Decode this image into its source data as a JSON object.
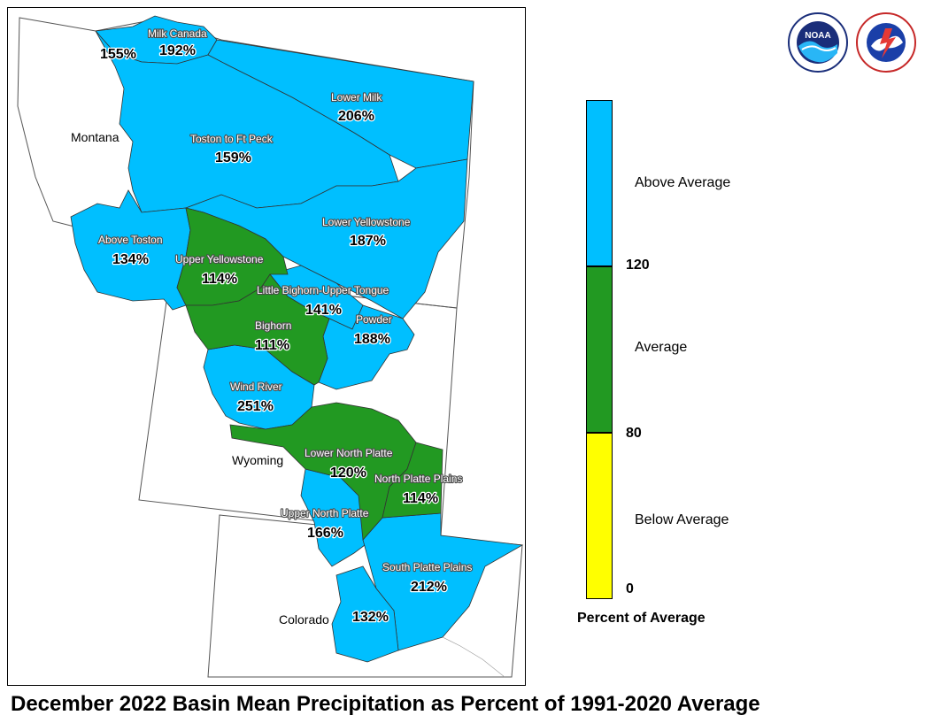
{
  "caption": "December 2022 Basin Mean Precipitation as Percent of 1991-2020 Average",
  "colors": {
    "above": "#00bfff",
    "average": "#229922",
    "below": "#ffff00",
    "outline": "#333333"
  },
  "states": [
    {
      "name": "Montana"
    },
    {
      "name": "Wyoming"
    },
    {
      "name": "Colorado"
    }
  ],
  "basins": [
    {
      "name": "Milk Canada",
      "pct": "192%",
      "category": "above"
    },
    {
      "name": "",
      "pct": "155%",
      "category": "above"
    },
    {
      "name": "Lower Milk",
      "pct": "206%",
      "category": "above"
    },
    {
      "name": "Toston to Ft Peck",
      "pct": "159%",
      "category": "above"
    },
    {
      "name": "Above Toston",
      "pct": "134%",
      "category": "above"
    },
    {
      "name": "Lower Yellowstone",
      "pct": "187%",
      "category": "above"
    },
    {
      "name": "Upper Yellowstone",
      "pct": "114%",
      "category": "average"
    },
    {
      "name": "Little Bighorn-Upper Tongue",
      "pct": "141%",
      "category": "above"
    },
    {
      "name": "Bighorn",
      "pct": "111%",
      "category": "average"
    },
    {
      "name": "Powder",
      "pct": "188%",
      "category": "above"
    },
    {
      "name": "Wind River",
      "pct": "251%",
      "category": "above"
    },
    {
      "name": "Lower North Platte",
      "pct": "120%",
      "category": "average"
    },
    {
      "name": "North Platte Plains",
      "pct": "114%",
      "category": "average"
    },
    {
      "name": "Upper North Platte",
      "pct": "166%",
      "category": "above"
    },
    {
      "name": "South Platte Plains",
      "pct": "212%",
      "category": "above"
    },
    {
      "name": "",
      "pct": "132%",
      "category": "above"
    }
  ],
  "legend": {
    "title": "Percent of Average",
    "categories": [
      {
        "label": "Above Average",
        "color": "#00bfff"
      },
      {
        "label": "Average",
        "color": "#229922"
      },
      {
        "label": "Below Average",
        "color": "#ffff00"
      }
    ],
    "breaks": [
      "120",
      "80",
      "0"
    ]
  },
  "logos": [
    {
      "name": "noaa-logo",
      "text": "NOAA"
    },
    {
      "name": "nws-logo",
      "text": "NATIONAL WEATHER SERVICE"
    }
  ]
}
